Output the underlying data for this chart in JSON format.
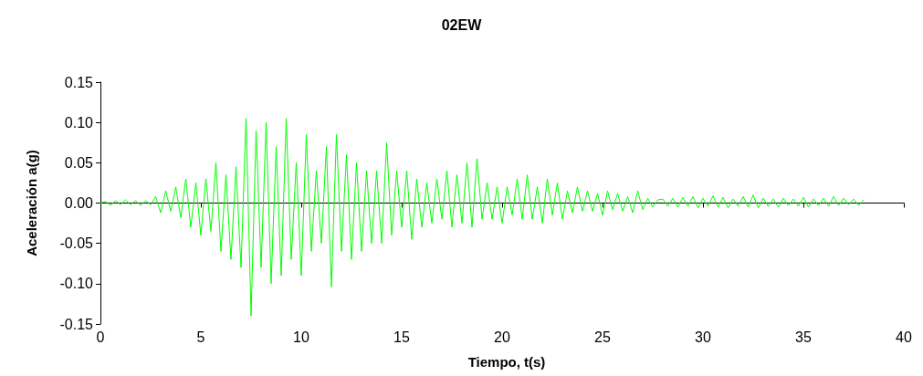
{
  "chart_data": {
    "type": "line",
    "title": "02EW",
    "xlabel": "Tiempo, t(s)",
    "ylabel": "Aceleración a(g)",
    "x": [
      0,
      0.25,
      0.5,
      0.75,
      1,
      1.25,
      1.5,
      1.75,
      2,
      2.25,
      2.5,
      2.75,
      3,
      3.25,
      3.5,
      3.75,
      4,
      4.25,
      4.5,
      4.75,
      5,
      5.25,
      5.5,
      5.75,
      6,
      6.25,
      6.5,
      6.75,
      7,
      7.25,
      7.5,
      7.75,
      8,
      8.25,
      8.5,
      8.75,
      9,
      9.25,
      9.5,
      9.75,
      10,
      10.25,
      10.5,
      10.75,
      11,
      11.25,
      11.5,
      11.75,
      12,
      12.25,
      12.5,
      12.75,
      13,
      13.25,
      13.5,
      13.75,
      14,
      14.25,
      14.5,
      14.75,
      15,
      15.25,
      15.5,
      15.75,
      16,
      16.25,
      16.5,
      16.75,
      17,
      17.25,
      17.5,
      17.75,
      18,
      18.25,
      18.5,
      18.75,
      19,
      19.25,
      19.5,
      19.75,
      20,
      20.25,
      20.5,
      20.75,
      21,
      21.25,
      21.5,
      21.75,
      22,
      22.25,
      22.5,
      22.75,
      23,
      23.25,
      23.5,
      23.75,
      24,
      24.25,
      24.5,
      24.75,
      25,
      25.25,
      25.5,
      25.75,
      26,
      26.25,
      26.5,
      26.75,
      27,
      27.25,
      27.5,
      27.75,
      28,
      28.25,
      28.5,
      28.75,
      29,
      29.25,
      29.5,
      29.75,
      30,
      30.25,
      30.5,
      30.75,
      31,
      31.25,
      31.5,
      31.75,
      32,
      32.25,
      32.5,
      32.75,
      33,
      33.25,
      33.5,
      33.75,
      34,
      34.25,
      34.5,
      34.75,
      35,
      35.25,
      35.5,
      35.75,
      36,
      36.25,
      36.5,
      36.75,
      37,
      37.25,
      37.5,
      37.75,
      38
    ],
    "series": [
      {
        "color": "#00ff00",
        "values": [
          0,
          0.002,
          -0.003,
          0.003,
          -0.002,
          0.004,
          -0.002,
          0.003,
          -0.003,
          0.003,
          -0.002,
          0.008,
          -0.012,
          0.015,
          -0.01,
          0.02,
          -0.018,
          0.03,
          -0.03,
          0.025,
          -0.04,
          0.03,
          -0.035,
          0.05,
          -0.06,
          0.035,
          -0.07,
          0.045,
          -0.08,
          0.105,
          -0.14,
          0.09,
          -0.08,
          0.1,
          -0.1,
          0.07,
          -0.09,
          0.105,
          -0.07,
          0.05,
          -0.09,
          0.085,
          -0.06,
          0.04,
          -0.05,
          0.07,
          -0.104,
          0.085,
          -0.06,
          0.06,
          -0.07,
          0.05,
          -0.06,
          0.04,
          -0.05,
          0.04,
          -0.05,
          0.075,
          -0.04,
          0.04,
          -0.03,
          0.04,
          -0.045,
          0.03,
          -0.03,
          0.025,
          -0.025,
          0.03,
          -0.02,
          0.04,
          -0.03,
          0.035,
          -0.025,
          0.05,
          -0.03,
          0.055,
          -0.02,
          0.025,
          -0.02,
          0.02,
          -0.025,
          0.02,
          -0.015,
          0.03,
          -0.02,
          0.035,
          -0.02,
          0.02,
          -0.025,
          0.03,
          -0.015,
          0.025,
          -0.02,
          0.015,
          -0.012,
          0.02,
          -0.01,
          0.015,
          -0.01,
          0.012,
          -0.015,
          0.015,
          -0.008,
          0.012,
          -0.01,
          0.008,
          -0.012,
          0.015,
          -0.008,
          0.006,
          -0.005,
          0.004,
          0.005,
          -0.004,
          0.006,
          -0.005,
          0.007,
          -0.004,
          0.008,
          -0.006,
          0.006,
          -0.004,
          0.009,
          -0.005,
          0.007,
          -0.006,
          0.005,
          -0.004,
          0.008,
          -0.005,
          0.01,
          -0.006,
          0.006,
          -0.004,
          0.005,
          -0.005,
          0.006,
          -0.003,
          0.005,
          -0.004,
          0.007,
          -0.005,
          0.005,
          -0.003,
          0.006,
          -0.004,
          0.008,
          -0.003,
          0.006,
          -0.002,
          0.005,
          -0.003,
          0.004
        ]
      }
    ],
    "xlim": [
      0,
      40
    ],
    "xticks": [
      0,
      5,
      10,
      15,
      20,
      25,
      30,
      35,
      40
    ],
    "ylim": [
      -0.15,
      0.15
    ],
    "yticks": [
      {
        "value": -0.15,
        "label": "-0.15"
      },
      {
        "value": -0.1,
        "label": "-0.10"
      },
      {
        "value": -0.05,
        "label": "-0.05"
      },
      {
        "value": 0,
        "label": "0.00"
      },
      {
        "value": 0.05,
        "label": "0.05"
      },
      {
        "value": 0.1,
        "label": "0.10"
      },
      {
        "value": 0.15,
        "label": "0.15"
      }
    ],
    "marker": "none",
    "line_style": "solid"
  }
}
